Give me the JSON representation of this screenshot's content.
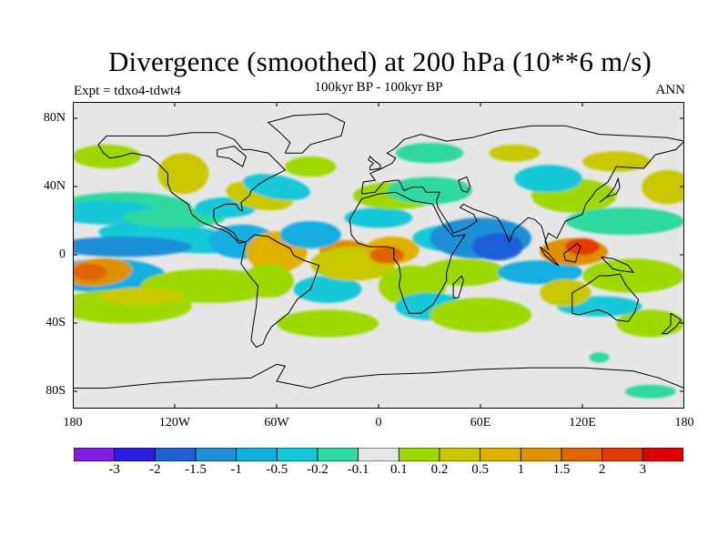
{
  "title": "Divergence (smoothed) at 200 hPa (10**6 m/s)",
  "experiment_label": "Expt = tdxo4-tdwt4",
  "period_label": "100kyr BP - 100kyr BP",
  "season_label": "ANN",
  "y_axis_labels": [
    "80N",
    "40N",
    "0",
    "40S",
    "80S"
  ],
  "x_axis_labels": [
    "180",
    "120W",
    "60W",
    "0",
    "60E",
    "120E",
    "180"
  ],
  "colorbar": {
    "labels": [
      "-3",
      "-2",
      "-1.5",
      "-1",
      "-0.5",
      "-0.2",
      "-0.1",
      "0.1",
      "0.2",
      "0.5",
      "1",
      "1.5",
      "2",
      "3"
    ],
    "colors": [
      "#7f1de0",
      "#2a1ee0",
      "#1e5fd9",
      "#1f8fd6",
      "#13aee0",
      "#12c8d8",
      "#2ed8a0",
      "#e6e6e6",
      "#9ed800",
      "#c8c800",
      "#e0b000",
      "#e08f00",
      "#e06400",
      "#e03a00",
      "#e00000"
    ]
  },
  "chart_data": {
    "type": "filled-contour-map",
    "variable": "Divergence (smoothed) at 200 hPa",
    "units": "10**6 m/s",
    "projection": "cylindrical equidistant",
    "lon_range": [
      -180,
      180
    ],
    "lat_range": [
      -90,
      90
    ],
    "contour_levels": [
      -3,
      -2,
      -1.5,
      -1,
      -0.5,
      -0.2,
      -0.1,
      0.1,
      0.2,
      0.5,
      1,
      1.5,
      2,
      3
    ]
  }
}
